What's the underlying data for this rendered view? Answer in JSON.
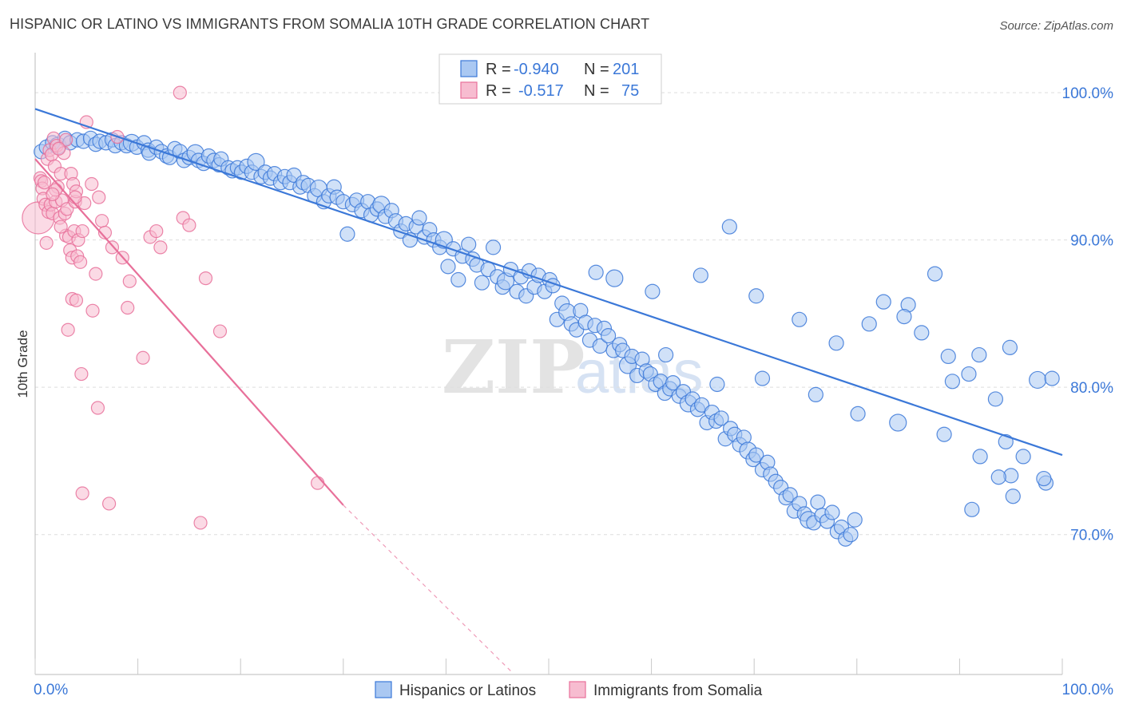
{
  "header": {
    "title": "HISPANIC OR LATINO VS IMMIGRANTS FROM SOMALIA 10TH GRADE CORRELATION CHART",
    "source": "Source: ZipAtlas.com"
  },
  "watermark": {
    "zip": "ZIP",
    "atlas": "atlas"
  },
  "colors": {
    "blue": "#3b78d8",
    "blue_fill": "#aac8f2",
    "pink": "#e8709a",
    "pink_fill": "#f7bcd0",
    "value_text": "#3b78d8"
  },
  "chart_data": {
    "type": "scatter",
    "title": "HISPANIC OR LATINO VS IMMIGRANTS FROM SOMALIA 10TH GRADE CORRELATION CHART",
    "xlabel": "",
    "ylabel": "10th Grade",
    "xlim": [
      0,
      100
    ],
    "ylim": [
      60.5,
      102.5
    ],
    "x_tick_labels": [
      "0.0%",
      "100.0%"
    ],
    "y_ticks": [
      {
        "value": 100,
        "label": "100.0%"
      },
      {
        "value": 90,
        "label": "90.0%"
      },
      {
        "value": 80,
        "label": "80.0%"
      },
      {
        "value": 70,
        "label": "70.0%"
      }
    ],
    "grid": true,
    "legend_position": "top-center",
    "stats": [
      {
        "r_label": "R =",
        "r_value": "-0.940",
        "n_label": "N =",
        "n_value": "201"
      },
      {
        "r_label": "R =",
        "r_value": "-0.517",
        "n_label": "N =",
        "n_value": "75"
      }
    ],
    "series": [
      {
        "name": "Hispanics or Latinos",
        "color": "#3b78d8",
        "trend": {
          "x": [
            0,
            100
          ],
          "y": [
            98.9,
            75.4
          ]
        },
        "points": [
          [
            0.6,
            96.0
          ],
          [
            1.1,
            96.3
          ],
          [
            1.7,
            96.6
          ],
          [
            2.2,
            96.4
          ],
          [
            2.9,
            96.9
          ],
          [
            3.4,
            96.6
          ],
          [
            4.1,
            96.8
          ],
          [
            4.7,
            96.7
          ],
          [
            5.4,
            96.9
          ],
          [
            5.9,
            96.5
          ],
          [
            6.3,
            96.7
          ],
          [
            6.9,
            96.6
          ],
          [
            7.5,
            96.8
          ],
          [
            7.8,
            96.4
          ],
          [
            8.4,
            96.6
          ],
          [
            8.9,
            96.4
          ],
          [
            9.4,
            96.6
          ],
          [
            9.9,
            96.3
          ],
          [
            10.6,
            96.6
          ],
          [
            11.0,
            96.1
          ],
          [
            11.1,
            95.9
          ],
          [
            11.8,
            96.3
          ],
          [
            12.3,
            96.0
          ],
          [
            12.8,
            95.7
          ],
          [
            13.1,
            95.6
          ],
          [
            13.6,
            96.2
          ],
          [
            14.1,
            96.0
          ],
          [
            14.5,
            95.4
          ],
          [
            15.0,
            95.6
          ],
          [
            15.6,
            95.9
          ],
          [
            15.9,
            95.4
          ],
          [
            16.4,
            95.2
          ],
          [
            16.9,
            95.7
          ],
          [
            17.4,
            95.4
          ],
          [
            17.9,
            95.1
          ],
          [
            18.1,
            95.5
          ],
          [
            18.8,
            94.9
          ],
          [
            19.2,
            94.7
          ],
          [
            19.7,
            94.9
          ],
          [
            20.1,
            94.6
          ],
          [
            20.6,
            95.0
          ],
          [
            21.1,
            94.6
          ],
          [
            21.5,
            95.3
          ],
          [
            22.0,
            94.3
          ],
          [
            22.4,
            94.6
          ],
          [
            22.9,
            94.2
          ],
          [
            23.3,
            94.5
          ],
          [
            23.9,
            93.9
          ],
          [
            24.3,
            94.3
          ],
          [
            24.8,
            93.9
          ],
          [
            25.2,
            94.4
          ],
          [
            25.8,
            93.6
          ],
          [
            26.1,
            93.9
          ],
          [
            26.6,
            93.7
          ],
          [
            27.2,
            93.0
          ],
          [
            27.6,
            93.5
          ],
          [
            28.1,
            92.6
          ],
          [
            28.6,
            93.0
          ],
          [
            29.1,
            93.6
          ],
          [
            29.4,
            92.9
          ],
          [
            30.0,
            92.6
          ],
          [
            30.4,
            90.4
          ],
          [
            30.9,
            92.4
          ],
          [
            31.3,
            92.7
          ],
          [
            31.8,
            92.0
          ],
          [
            32.4,
            92.6
          ],
          [
            32.7,
            91.7
          ],
          [
            33.3,
            92.1
          ],
          [
            33.7,
            92.4
          ],
          [
            34.1,
            91.6
          ],
          [
            34.7,
            92.0
          ],
          [
            35.1,
            91.3
          ],
          [
            35.6,
            90.6
          ],
          [
            36.1,
            91.1
          ],
          [
            36.5,
            90.0
          ],
          [
            37.1,
            90.9
          ],
          [
            37.4,
            91.5
          ],
          [
            37.9,
            90.2
          ],
          [
            38.4,
            90.7
          ],
          [
            38.8,
            90.0
          ],
          [
            39.4,
            89.5
          ],
          [
            39.8,
            90.0
          ],
          [
            40.2,
            88.2
          ],
          [
            40.7,
            89.4
          ],
          [
            41.2,
            87.3
          ],
          [
            41.6,
            88.9
          ],
          [
            42.2,
            89.7
          ],
          [
            42.6,
            88.7
          ],
          [
            43.0,
            88.3
          ],
          [
            43.5,
            87.1
          ],
          [
            44.1,
            88.0
          ],
          [
            44.6,
            89.5
          ],
          [
            45.0,
            87.5
          ],
          [
            45.5,
            86.8
          ],
          [
            45.8,
            87.2
          ],
          [
            46.3,
            88.0
          ],
          [
            46.9,
            86.5
          ],
          [
            47.3,
            87.5
          ],
          [
            47.8,
            86.2
          ],
          [
            48.1,
            87.9
          ],
          [
            48.6,
            86.8
          ],
          [
            49.0,
            87.6
          ],
          [
            49.6,
            86.5
          ],
          [
            50.1,
            87.3
          ],
          [
            50.4,
            86.9
          ],
          [
            50.8,
            84.6
          ],
          [
            51.3,
            85.7
          ],
          [
            51.8,
            85.1
          ],
          [
            52.2,
            84.3
          ],
          [
            52.7,
            83.9
          ],
          [
            53.1,
            85.2
          ],
          [
            53.6,
            84.4
          ],
          [
            54.0,
            83.2
          ],
          [
            54.5,
            84.2
          ],
          [
            55.0,
            82.8
          ],
          [
            55.4,
            84.0
          ],
          [
            55.8,
            83.5
          ],
          [
            56.3,
            82.5
          ],
          [
            56.9,
            82.9
          ],
          [
            57.2,
            82.5
          ],
          [
            57.7,
            81.5
          ],
          [
            58.1,
            82.1
          ],
          [
            58.6,
            80.8
          ],
          [
            59.1,
            81.9
          ],
          [
            59.5,
            81.1
          ],
          [
            59.9,
            80.9
          ],
          [
            60.4,
            80.2
          ],
          [
            60.9,
            80.4
          ],
          [
            61.3,
            79.6
          ],
          [
            61.8,
            79.9
          ],
          [
            62.1,
            80.3
          ],
          [
            62.7,
            79.4
          ],
          [
            63.1,
            79.7
          ],
          [
            63.6,
            78.9
          ],
          [
            64.0,
            79.2
          ],
          [
            64.5,
            78.5
          ],
          [
            64.9,
            78.8
          ],
          [
            65.4,
            77.6
          ],
          [
            65.9,
            78.3
          ],
          [
            66.3,
            77.7
          ],
          [
            66.8,
            77.9
          ],
          [
            67.2,
            76.5
          ],
          [
            67.7,
            77.2
          ],
          [
            68.1,
            76.8
          ],
          [
            68.6,
            76.1
          ],
          [
            69.0,
            76.6
          ],
          [
            69.4,
            75.7
          ],
          [
            69.9,
            75.1
          ],
          [
            70.2,
            75.4
          ],
          [
            70.8,
            74.4
          ],
          [
            71.3,
            74.9
          ],
          [
            71.6,
            74.1
          ],
          [
            72.1,
            73.6
          ],
          [
            72.6,
            73.2
          ],
          [
            73.1,
            72.5
          ],
          [
            73.5,
            72.7
          ],
          [
            73.9,
            71.6
          ],
          [
            74.4,
            72.1
          ],
          [
            74.9,
            71.4
          ],
          [
            75.3,
            71.0
          ],
          [
            75.8,
            70.8
          ],
          [
            76.2,
            72.2
          ],
          [
            76.6,
            71.3
          ],
          [
            77.1,
            70.9
          ],
          [
            77.6,
            71.5
          ],
          [
            78.1,
            70.2
          ],
          [
            78.5,
            70.5
          ],
          [
            78.9,
            69.7
          ],
          [
            79.4,
            70.0
          ],
          [
            79.8,
            71.0
          ],
          [
            67.6,
            90.9
          ],
          [
            54.6,
            87.8
          ],
          [
            56.4,
            87.4
          ],
          [
            60.1,
            86.5
          ],
          [
            64.8,
            87.6
          ],
          [
            70.2,
            86.2
          ],
          [
            74.4,
            84.6
          ],
          [
            78.0,
            83.0
          ],
          [
            82.6,
            85.8
          ],
          [
            85.0,
            85.6
          ],
          [
            61.4,
            82.2
          ],
          [
            66.4,
            80.2
          ],
          [
            70.8,
            80.6
          ],
          [
            76.0,
            79.5
          ],
          [
            80.1,
            78.2
          ],
          [
            84.0,
            77.6
          ],
          [
            88.5,
            76.8
          ],
          [
            92.0,
            75.3
          ],
          [
            95.0,
            74.0
          ],
          [
            98.4,
            73.5
          ],
          [
            87.6,
            87.7
          ],
          [
            81.2,
            84.3
          ],
          [
            84.6,
            84.8
          ],
          [
            86.3,
            83.7
          ],
          [
            88.9,
            82.1
          ],
          [
            91.9,
            82.2
          ],
          [
            94.9,
            82.7
          ],
          [
            90.9,
            80.9
          ],
          [
            97.6,
            80.5
          ],
          [
            99.0,
            80.6
          ],
          [
            89.3,
            80.4
          ],
          [
            93.5,
            79.2
          ],
          [
            94.5,
            76.3
          ],
          [
            96.2,
            75.3
          ],
          [
            95.2,
            72.6
          ],
          [
            93.8,
            73.9
          ],
          [
            98.2,
            73.8
          ],
          [
            91.2,
            71.7
          ]
        ]
      },
      {
        "name": "Immigrants from Somalia",
        "color": "#e8709a",
        "trend": {
          "x": [
            0,
            30
          ],
          "y": [
            95.5,
            72.0
          ]
        },
        "trend_extension": {
          "x": [
            30,
            46.5
          ],
          "y": [
            72.0,
            60.6
          ]
        },
        "points": [
          [
            0.3,
            91.5
          ],
          [
            0.5,
            94.2
          ],
          [
            0.6,
            94.0
          ],
          [
            0.7,
            93.5
          ],
          [
            0.8,
            92.8
          ],
          [
            0.9,
            93.9
          ],
          [
            1.0,
            92.4
          ],
          [
            1.2,
            95.5
          ],
          [
            1.3,
            91.9
          ],
          [
            1.4,
            96.1
          ],
          [
            1.5,
            92.4
          ],
          [
            1.6,
            95.8
          ],
          [
            1.7,
            91.8
          ],
          [
            1.8,
            96.9
          ],
          [
            1.9,
            95.0
          ],
          [
            2.0,
            92.6
          ],
          [
            2.1,
            96.4
          ],
          [
            2.2,
            93.6
          ],
          [
            2.4,
            91.5
          ],
          [
            2.5,
            94.5
          ],
          [
            2.6,
            92.7
          ],
          [
            2.8,
            95.9
          ],
          [
            2.9,
            91.8
          ],
          [
            3.0,
            90.3
          ],
          [
            3.1,
            92.1
          ],
          [
            3.3,
            90.2
          ],
          [
            3.4,
            89.3
          ],
          [
            3.5,
            94.5
          ],
          [
            3.6,
            88.8
          ],
          [
            3.7,
            93.8
          ],
          [
            3.8,
            90.6
          ],
          [
            3.9,
            92.6
          ],
          [
            4.0,
            93.3
          ],
          [
            4.1,
            88.9
          ],
          [
            4.2,
            90.0
          ],
          [
            4.4,
            88.5
          ],
          [
            4.6,
            90.6
          ],
          [
            4.8,
            92.5
          ],
          [
            5.0,
            98.0
          ],
          [
            5.5,
            93.8
          ],
          [
            5.9,
            87.7
          ],
          [
            6.2,
            92.9
          ],
          [
            6.5,
            91.3
          ],
          [
            6.8,
            90.5
          ],
          [
            7.2,
            72.1
          ],
          [
            7.5,
            89.5
          ],
          [
            8.0,
            97.0
          ],
          [
            8.5,
            88.8
          ],
          [
            9.0,
            85.4
          ],
          [
            9.2,
            87.2
          ],
          [
            10.5,
            82.0
          ],
          [
            11.2,
            90.2
          ],
          [
            11.8,
            90.6
          ],
          [
            12.2,
            89.5
          ],
          [
            14.1,
            100.0
          ],
          [
            14.4,
            91.5
          ],
          [
            15.0,
            91.0
          ],
          [
            16.1,
            70.8
          ],
          [
            16.6,
            87.4
          ],
          [
            18.0,
            83.8
          ],
          [
            27.5,
            73.5
          ],
          [
            2.0,
            93.4
          ],
          [
            3.0,
            96.8
          ],
          [
            3.2,
            83.9
          ],
          [
            2.3,
            96.2
          ],
          [
            3.6,
            86.0
          ],
          [
            1.7,
            93.1
          ],
          [
            4.0,
            85.9
          ],
          [
            4.5,
            80.9
          ],
          [
            4.6,
            72.8
          ],
          [
            5.6,
            85.2
          ],
          [
            6.1,
            78.6
          ],
          [
            1.1,
            89.8
          ],
          [
            2.5,
            90.9
          ],
          [
            3.9,
            92.9
          ]
        ]
      }
    ]
  }
}
